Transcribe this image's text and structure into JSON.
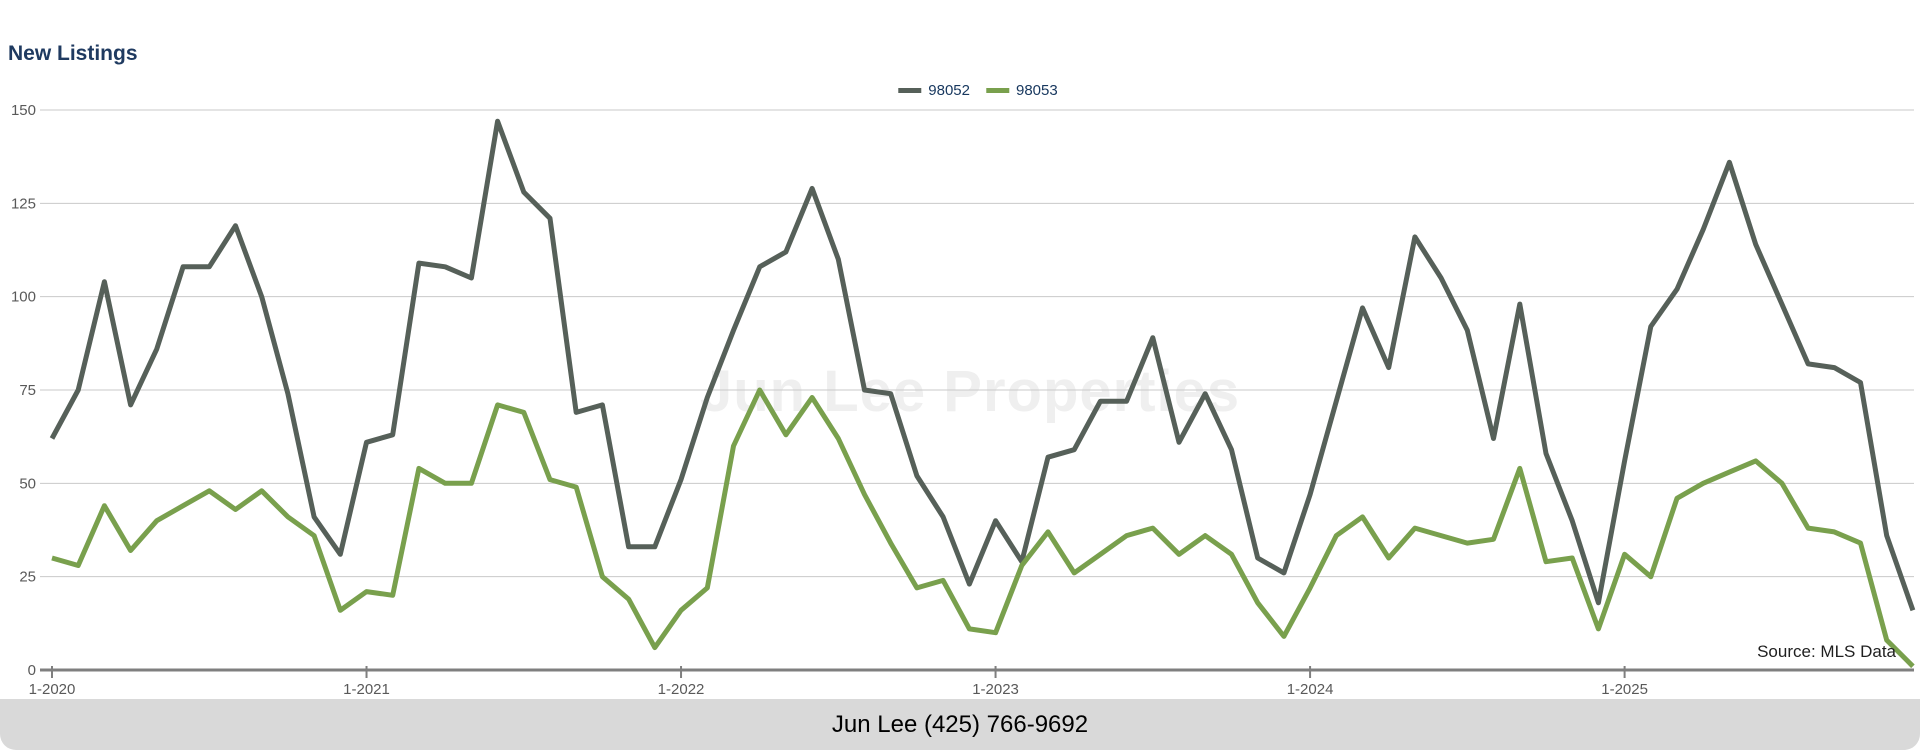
{
  "title": "New Listings",
  "watermark": "Jun Lee Properties",
  "source_note": "Source: MLS Data",
  "footer": {
    "text": "Jun Lee (425) 766-9692"
  },
  "legend": {
    "items": [
      {
        "label": "98052",
        "color": "#566059"
      },
      {
        "label": "98053",
        "color": "#79a04d"
      }
    ]
  },
  "colors": {
    "title_text": "#1f3a60",
    "legend_text": "#17375e",
    "series_98052": "#566059",
    "series_98053": "#79a04d",
    "gridline": "#c9c9c9",
    "axis": "#7f7f7f",
    "tick_label": "#595959",
    "watermark_text": "#efefef",
    "footer_background": "#d9d9d9",
    "footer_text": "#000000",
    "source_text": "#1f1f1f"
  },
  "chart_data": {
    "type": "line",
    "title": "New Listings",
    "xlabel": "",
    "ylabel": "",
    "ylim": [
      0,
      150
    ],
    "y_ticks": [
      0,
      25,
      50,
      75,
      100,
      125,
      150
    ],
    "grid": true,
    "legend_position": "top-center",
    "x_start": "1-2020",
    "x_frequency": "monthly",
    "x_tick_labels": [
      "1-2020",
      "1-2021",
      "1-2022",
      "1-2023",
      "1-2024",
      "1-2025"
    ],
    "series": [
      {
        "name": "98052",
        "color": "#566059",
        "values": [
          62,
          75,
          104,
          71,
          86,
          108,
          108,
          119,
          100,
          74,
          41,
          31,
          61,
          63,
          109,
          108,
          105,
          147,
          128,
          121,
          69,
          71,
          33,
          33,
          51,
          73,
          91,
          108,
          112,
          129,
          110,
          75,
          74,
          52,
          41,
          23,
          40,
          29,
          57,
          59,
          72,
          72,
          89,
          61,
          74,
          59,
          30,
          26,
          47,
          72,
          97,
          81,
          116,
          105,
          91,
          62,
          98,
          58,
          40,
          18,
          56,
          92,
          102,
          118,
          136,
          114,
          98,
          82,
          81,
          77,
          36,
          16
        ]
      },
      {
        "name": "98053",
        "color": "#79a04d",
        "values": [
          30,
          28,
          44,
          32,
          40,
          44,
          48,
          43,
          48,
          41,
          36,
          16,
          21,
          20,
          54,
          50,
          50,
          71,
          69,
          51,
          49,
          25,
          19,
          6,
          16,
          22,
          60,
          75,
          63,
          73,
          62,
          47,
          34,
          22,
          24,
          11,
          10,
          28,
          37,
          26,
          31,
          36,
          38,
          31,
          36,
          31,
          18,
          9,
          22,
          36,
          41,
          30,
          38,
          36,
          34,
          35,
          54,
          29,
          30,
          11,
          31,
          25,
          46,
          50,
          53,
          56,
          50,
          38,
          37,
          34,
          8,
          1
        ]
      }
    ]
  }
}
